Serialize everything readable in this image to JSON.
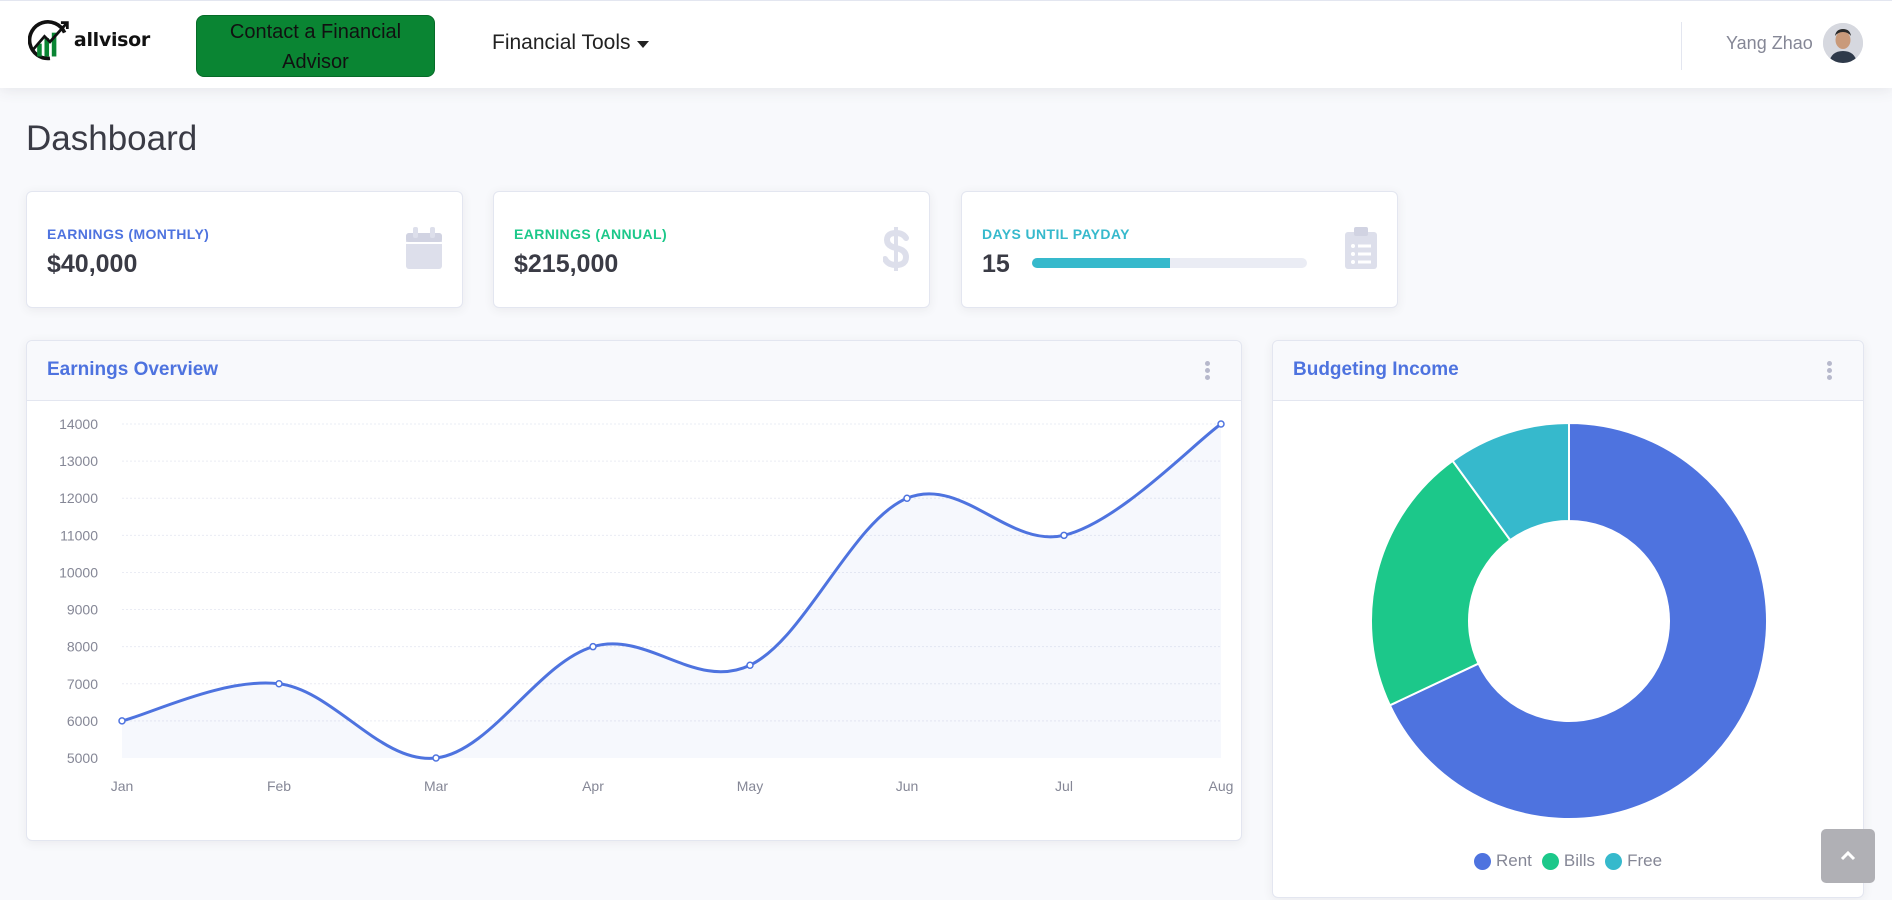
{
  "brand": {
    "name": "allvisor"
  },
  "topbar": {
    "contact_label": "Contact a Financial Advisor",
    "tools_label": "Financial Tools",
    "user_name": "Yang Zhao"
  },
  "page": {
    "title": "Dashboard"
  },
  "stats": [
    {
      "label": "EARNINGS (MONTHLY)",
      "value": "$40,000",
      "color": "#4e73df",
      "icon": "calendar-icon"
    },
    {
      "label": "EARNINGS (ANNUAL)",
      "value": "$215,000",
      "color": "#1cc88a",
      "icon": "dollar-icon"
    },
    {
      "label": "DAYS UNTIL PAYDAY",
      "value": "15",
      "color": "#36b9cc",
      "icon": "clipboard-icon",
      "progress": 0.5
    }
  ],
  "panels": {
    "earnings_title": "Earnings Overview",
    "budget_title": "Budgeting Income"
  },
  "colors": {
    "primary": "#4e73df",
    "success": "#1cc88a",
    "info": "#36b9cc",
    "button_green": "#0a8533"
  },
  "chart_data": [
    {
      "type": "area",
      "categories": [
        "Jan",
        "Feb",
        "Mar",
        "Apr",
        "May",
        "Jun",
        "Jul",
        "Aug"
      ],
      "series": [
        {
          "values": [
            6000,
            7000,
            5000,
            8000,
            7500,
            12000,
            11000,
            14000
          ]
        }
      ],
      "ylim": [
        5000,
        14000
      ],
      "yticks": [
        14000,
        13000,
        12000,
        11000,
        10000,
        9000,
        8000,
        7000,
        6000,
        5000
      ],
      "grid": true,
      "color": "#4e73df"
    },
    {
      "type": "pie",
      "donut": true,
      "labels": [
        "Rent",
        "Bills",
        "Free"
      ],
      "values": [
        68,
        22,
        10
      ],
      "colors": [
        "#4e73df",
        "#1cc88a",
        "#36b9cc"
      ],
      "legend": "bottom"
    }
  ]
}
